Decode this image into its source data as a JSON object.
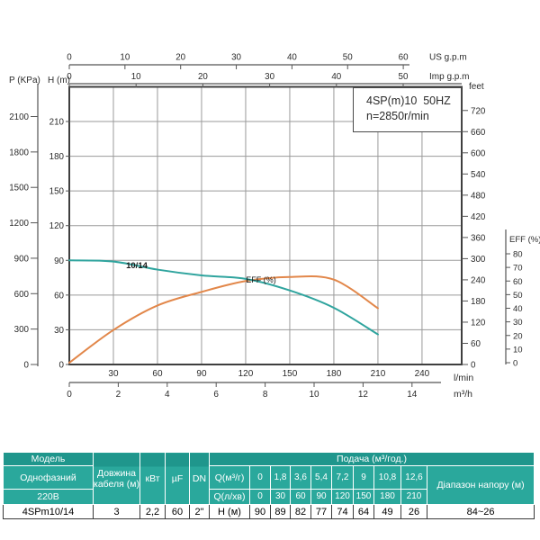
{
  "title_box": {
    "line1": "4SP(m)10  50HZ",
    "line2": "n=2850r/min"
  },
  "chart_data": {
    "type": "line",
    "title": "4SP(m)10  50HZ",
    "subtitle": "n=2850r/min",
    "x_lmin": [
      0,
      30,
      60,
      90,
      120,
      150,
      180,
      210
    ],
    "series": [
      {
        "name": "10/14",
        "yaxis": "H (m)",
        "values": [
          90,
          89,
          82,
          77,
          74,
          64,
          49,
          26
        ],
        "color": "#2fa49e"
      },
      {
        "name": "EFF (%)",
        "yaxis": "EFF (%)",
        "values": [
          0,
          24,
          42,
          52,
          60,
          63,
          61,
          40
        ],
        "color": "#e2874a"
      }
    ],
    "curve_labels": {
      "head": "10/14",
      "eff": "EFF (%)"
    },
    "axes": {
      "h": {
        "label": "H (m)",
        "ticks": [
          0,
          30,
          60,
          90,
          120,
          150,
          180,
          210
        ],
        "max": 240
      },
      "p": {
        "label": "P (KPa)",
        "ticks": [
          0,
          300,
          600,
          900,
          1200,
          1500,
          1800,
          2100
        ]
      },
      "feet": {
        "label": "feet",
        "ticks": [
          0,
          60,
          120,
          180,
          240,
          300,
          360,
          420,
          480,
          540,
          600,
          660,
          720
        ]
      },
      "eff": {
        "label": "EFF (%)",
        "ticks": [
          0,
          10,
          20,
          30,
          40,
          50,
          60,
          70,
          80
        ]
      },
      "lmin": {
        "label": "l/min",
        "ticks": [
          30,
          60,
          90,
          120,
          150,
          180,
          210,
          240
        ]
      },
      "m3h": {
        "label": "m³/h",
        "ticks": [
          0,
          2,
          4,
          6,
          8,
          10,
          12,
          14
        ]
      },
      "us": {
        "label": "US g.p.m",
        "ticks": [
          0,
          10,
          20,
          30,
          40,
          50,
          60
        ]
      },
      "imp": {
        "label": "Imp g.p.m",
        "ticks": [
          0,
          10,
          20,
          30,
          40,
          50
        ]
      }
    },
    "grid": true,
    "legend_position": "none"
  },
  "table": {
    "model_header": "Модель",
    "phase": "Однофазний",
    "voltage": "220В",
    "model": "4SPm10/14",
    "cable_label": "Довжина кабеля (м)",
    "cable": "3",
    "kw_label": "кВт",
    "kw": "2,2",
    "uf_label": "µF",
    "uf": "60",
    "dn_label": "DN",
    "dn": "2\"",
    "flow_header": "Подача (м³/год.)",
    "q_m3h_label": "Q(м³/г)",
    "q_m3h": [
      "0",
      "1,8",
      "3,6",
      "5,4",
      "7,2",
      "9",
      "10,8",
      "12,6"
    ],
    "q_lmin_label": "Q(л/хв)",
    "q_lmin": [
      "0",
      "30",
      "60",
      "90",
      "120",
      "150",
      "180",
      "210"
    ],
    "h_label": "Н (м)",
    "h_values": [
      "90",
      "89",
      "82",
      "77",
      "74",
      "64",
      "49",
      "26"
    ],
    "range_label": "Діапазон напору (м)",
    "range": "84~26"
  },
  "colors": {
    "head_curve": "#2fa49e",
    "eff_curve": "#e2874a",
    "grid": "#9a9a9a",
    "plot_border": "#3f3f3f",
    "axis": "#555555",
    "text": "#2b2b2b",
    "table_teal": "#2aa89c",
    "table_teal_dark": "#1f968c"
  }
}
